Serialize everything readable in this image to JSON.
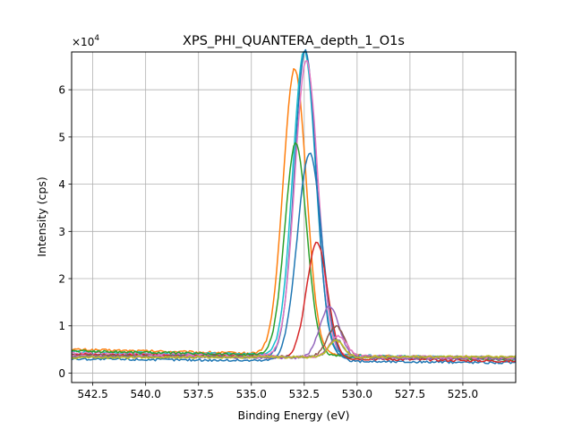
{
  "chart_data": {
    "type": "line",
    "title": "XPS_PHI_QUANTERA_depth_1_O1s",
    "xlabel": "Binding Energy (eV)",
    "ylabel": "Intensity (cps)",
    "y_multiplier_label": "×10",
    "y_multiplier_exponent": "4",
    "xlim": [
      543.5,
      522.5
    ],
    "ylim": [
      -0.2,
      6.8
    ],
    "x_reversed": true,
    "grid": true,
    "x_ticks": [
      {
        "value": 542.5,
        "label": "542.5"
      },
      {
        "value": 540.0,
        "label": "540.0"
      },
      {
        "value": 537.5,
        "label": "537.5"
      },
      {
        "value": 535.0,
        "label": "535.0"
      },
      {
        "value": 532.5,
        "label": "532.5"
      },
      {
        "value": 530.0,
        "label": "530.0"
      },
      {
        "value": 527.5,
        "label": "527.5"
      },
      {
        "value": 525.0,
        "label": "525.0"
      }
    ],
    "y_ticks": [
      {
        "value": 0,
        "label": "0"
      },
      {
        "value": 1,
        "label": "1"
      },
      {
        "value": 2,
        "label": "2"
      },
      {
        "value": 3,
        "label": "3"
      },
      {
        "value": 4,
        "label": "4"
      },
      {
        "value": 5,
        "label": "5"
      },
      {
        "value": 6,
        "label": "6"
      }
    ],
    "series": [
      {
        "color": "#ff7f0e",
        "left_baseline": 0.5,
        "right_baseline": 0.3,
        "center": 532.95,
        "peak": 6.05,
        "width": 0.95
      },
      {
        "color": "#17becf",
        "left_baseline": 0.45,
        "right_baseline": 0.32,
        "center": 532.5,
        "peak": 6.45,
        "width": 0.95
      },
      {
        "color": "#1f77b4",
        "left_baseline": 0.4,
        "right_baseline": 0.3,
        "center": 532.45,
        "peak": 6.5,
        "width": 0.9
      },
      {
        "color": "#e377c2",
        "left_baseline": 0.42,
        "right_baseline": 0.33,
        "center": 532.4,
        "peak": 6.25,
        "width": 0.95
      },
      {
        "color": "#2ca02c",
        "left_baseline": 0.47,
        "right_baseline": 0.28,
        "center": 532.9,
        "peak": 4.5,
        "width": 0.9
      },
      {
        "color": "#1f77b4",
        "left_baseline": 0.3,
        "right_baseline": 0.22,
        "center": 532.25,
        "peak": 4.4,
        "width": 1.0
      },
      {
        "color": "#d62728",
        "left_baseline": 0.4,
        "right_baseline": 0.25,
        "center": 531.9,
        "peak": 2.45,
        "width": 0.85
      },
      {
        "color": "#9467bd",
        "left_baseline": 0.35,
        "right_baseline": 0.3,
        "center": 531.3,
        "peak": 1.1,
        "width": 0.8
      },
      {
        "color": "#8c564b",
        "left_baseline": 0.38,
        "right_baseline": 0.32,
        "center": 531.0,
        "peak": 0.65,
        "width": 0.7
      },
      {
        "color": "#e377c2",
        "left_baseline": 0.36,
        "right_baseline": 0.33,
        "center": 530.9,
        "peak": 0.45,
        "width": 0.7
      },
      {
        "color": "#7f7f7f",
        "left_baseline": 0.34,
        "right_baseline": 0.34,
        "center": 531.0,
        "peak": 0.38,
        "width": 0.6
      },
      {
        "color": "#bcbd22",
        "left_baseline": 0.33,
        "right_baseline": 0.35,
        "center": 531.0,
        "peak": 0.35,
        "width": 0.6
      }
    ]
  }
}
